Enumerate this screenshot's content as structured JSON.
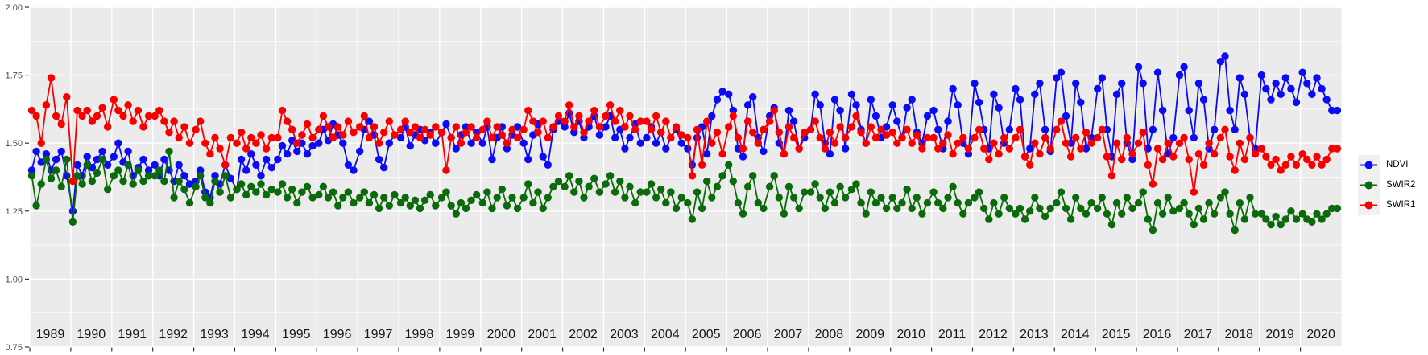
{
  "legend": {
    "items": [
      {
        "label": "NDVI",
        "color": "#0b0bf5"
      },
      {
        "label": "SWIR2",
        "color": "#0b6b0b"
      },
      {
        "label": "SWIR1",
        "color": "#f80000"
      }
    ]
  },
  "chart_data": {
    "type": "line",
    "title": "",
    "xlabel": "",
    "ylabel": "",
    "legend_position": "right",
    "grid": "on",
    "style": {
      "panel_bg": "#ebebeb",
      "grid_color": "#ffffff",
      "axis_text_color": "#4d4d4d",
      "year_text_color": "#151515",
      "tick_color": "#333333"
    },
    "x_axis": {
      "range": [
        1989,
        2021
      ],
      "years": [
        1989,
        1990,
        1991,
        1992,
        1993,
        1994,
        1995,
        1996,
        1997,
        1998,
        1999,
        2000,
        2001,
        2002,
        2003,
        2004,
        2005,
        2006,
        2007,
        2008,
        2009,
        2010,
        2011,
        2012,
        2013,
        2014,
        2015,
        2016,
        2017,
        2018,
        2019,
        2020
      ]
    },
    "y_axis": {
      "range": [
        0.75,
        2.0
      ],
      "tick_values": [
        0.75,
        1.0,
        1.25,
        1.5,
        1.75,
        2.0
      ],
      "ticks": [
        "0.75",
        "1.00",
        "1.25",
        "1.50",
        "1.75",
        "2.00"
      ],
      "minor": [
        0.875,
        1.125,
        1.375,
        1.625,
        1.875
      ]
    },
    "x_offsets": [
      0.05,
      0.16,
      0.28,
      0.4,
      0.52,
      0.64,
      0.77,
      0.9
    ],
    "series": [
      {
        "name": "NDVI",
        "color": "#0b0bf5",
        "values": {
          "1989": [
            1.4,
            1.47,
            1.43,
            1.46,
            1.4,
            1.44,
            1.47,
            1.38
          ],
          "1990": [
            1.25,
            1.42,
            1.38,
            1.45,
            1.41,
            1.44,
            1.47,
            1.42
          ],
          "1991": [
            1.45,
            1.5,
            1.43,
            1.47,
            1.38,
            1.41,
            1.44,
            1.4
          ],
          "1992": [
            1.42,
            1.38,
            1.44,
            1.4,
            1.36,
            1.42,
            1.38,
            1.35
          ],
          "1993": [
            1.36,
            1.4,
            1.32,
            1.3,
            1.38,
            1.35,
            1.42,
            1.37
          ],
          "1994": [
            1.33,
            1.44,
            1.4,
            1.46,
            1.42,
            1.38,
            1.44,
            1.41
          ],
          "1995": [
            1.44,
            1.49,
            1.46,
            1.51,
            1.47,
            1.5,
            1.46,
            1.49
          ],
          "1996": [
            1.5,
            1.55,
            1.51,
            1.57,
            1.53,
            1.5,
            1.42,
            1.4
          ],
          "1997": [
            1.47,
            1.55,
            1.58,
            1.53,
            1.44,
            1.41,
            1.5,
            1.53
          ],
          "1998": [
            1.52,
            1.56,
            1.49,
            1.53,
            1.55,
            1.51,
            1.54,
            1.5
          ],
          "1999": [
            1.54,
            1.57,
            1.52,
            1.48,
            1.53,
            1.56,
            1.5,
            1.54
          ],
          "2000": [
            1.5,
            1.56,
            1.44,
            1.52,
            1.56,
            1.48,
            1.53,
            1.56
          ],
          "2001": [
            1.5,
            1.44,
            1.53,
            1.57,
            1.45,
            1.42,
            1.55,
            1.58
          ],
          "2002": [
            1.56,
            1.61,
            1.54,
            1.58,
            1.52,
            1.56,
            1.6,
            1.53
          ],
          "2003": [
            1.56,
            1.6,
            1.52,
            1.55,
            1.48,
            1.52,
            1.57,
            1.5
          ],
          "2004": [
            1.52,
            1.56,
            1.5,
            1.54,
            1.48,
            1.52,
            1.55,
            1.5
          ],
          "2005": [
            1.48,
            1.42,
            1.52,
            1.56,
            1.46,
            1.6,
            1.66,
            1.69
          ],
          "2006": [
            1.68,
            1.62,
            1.48,
            1.45,
            1.64,
            1.67,
            1.52,
            1.47
          ],
          "2007": [
            1.6,
            1.63,
            1.5,
            1.46,
            1.62,
            1.58,
            1.48,
            1.52
          ],
          "2008": [
            1.55,
            1.68,
            1.64,
            1.5,
            1.46,
            1.66,
            1.62,
            1.48
          ],
          "2009": [
            1.68,
            1.64,
            1.55,
            1.5,
            1.66,
            1.6,
            1.52,
            1.56
          ],
          "2010": [
            1.64,
            1.58,
            1.52,
            1.63,
            1.66,
            1.54,
            1.5,
            1.6
          ],
          "2011": [
            1.62,
            1.55,
            1.48,
            1.58,
            1.7,
            1.64,
            1.5,
            1.46
          ],
          "2012": [
            1.72,
            1.65,
            1.55,
            1.48,
            1.68,
            1.63,
            1.5,
            1.55
          ],
          "2013": [
            1.7,
            1.66,
            1.45,
            1.48,
            1.68,
            1.72,
            1.55,
            1.47
          ],
          "2014": [
            1.74,
            1.76,
            1.6,
            1.5,
            1.72,
            1.65,
            1.48,
            1.52
          ],
          "2015": [
            1.7,
            1.74,
            1.55,
            1.45,
            1.68,
            1.72,
            1.5,
            1.44
          ],
          "2016": [
            1.78,
            1.72,
            1.48,
            1.55,
            1.76,
            1.62,
            1.46,
            1.52
          ],
          "2017": [
            1.75,
            1.78,
            1.62,
            1.52,
            1.72,
            1.66,
            1.48,
            1.55
          ],
          "2018": [
            1.8,
            1.82,
            1.62,
            1.55,
            1.74,
            1.68,
            1.52,
            1.48
          ],
          "2019": [
            1.75,
            1.7,
            1.66,
            1.72,
            1.68,
            1.74,
            1.7,
            1.65
          ],
          "2020": [
            1.76,
            1.72,
            1.68,
            1.74,
            1.7,
            1.66,
            1.62,
            1.62
          ]
        }
      },
      {
        "name": "SWIR2",
        "color": "#0b6b0b",
        "values": {
          "1989": [
            1.38,
            1.27,
            1.35,
            1.44,
            1.37,
            1.4,
            1.34,
            1.44
          ],
          "1990": [
            1.21,
            1.38,
            1.35,
            1.42,
            1.36,
            1.39,
            1.44,
            1.33
          ],
          "1991": [
            1.38,
            1.4,
            1.36,
            1.42,
            1.35,
            1.4,
            1.36,
            1.38
          ],
          "1992": [
            1.38,
            1.4,
            1.36,
            1.47,
            1.3,
            1.36,
            1.33,
            1.28
          ],
          "1993": [
            1.34,
            1.38,
            1.3,
            1.28,
            1.36,
            1.32,
            1.38,
            1.3
          ],
          "1994": [
            1.33,
            1.35,
            1.31,
            1.34,
            1.32,
            1.35,
            1.31,
            1.33
          ],
          "1995": [
            1.32,
            1.35,
            1.3,
            1.33,
            1.28,
            1.32,
            1.34,
            1.3
          ],
          "1996": [
            1.31,
            1.34,
            1.3,
            1.32,
            1.27,
            1.3,
            1.32,
            1.28
          ],
          "1997": [
            1.3,
            1.32,
            1.28,
            1.31,
            1.26,
            1.3,
            1.27,
            1.31
          ],
          "1998": [
            1.28,
            1.3,
            1.27,
            1.29,
            1.26,
            1.29,
            1.31,
            1.27
          ],
          "1999": [
            1.3,
            1.32,
            1.27,
            1.24,
            1.28,
            1.26,
            1.29,
            1.31
          ],
          "2000": [
            1.28,
            1.32,
            1.26,
            1.3,
            1.33,
            1.27,
            1.3,
            1.26
          ],
          "2001": [
            1.3,
            1.35,
            1.28,
            1.32,
            1.26,
            1.3,
            1.34,
            1.36
          ],
          "2002": [
            1.34,
            1.38,
            1.32,
            1.36,
            1.3,
            1.34,
            1.37,
            1.32
          ],
          "2003": [
            1.35,
            1.38,
            1.32,
            1.36,
            1.3,
            1.34,
            1.28,
            1.32
          ],
          "2004": [
            1.32,
            1.35,
            1.3,
            1.33,
            1.28,
            1.32,
            1.26,
            1.3
          ],
          "2005": [
            1.28,
            1.22,
            1.32,
            1.26,
            1.36,
            1.3,
            1.34,
            1.38
          ],
          "2006": [
            1.42,
            1.36,
            1.28,
            1.24,
            1.34,
            1.38,
            1.28,
            1.26
          ],
          "2007": [
            1.34,
            1.38,
            1.3,
            1.24,
            1.34,
            1.3,
            1.26,
            1.32
          ],
          "2008": [
            1.32,
            1.35,
            1.3,
            1.26,
            1.32,
            1.28,
            1.34,
            1.3
          ],
          "2009": [
            1.33,
            1.35,
            1.28,
            1.24,
            1.32,
            1.28,
            1.3,
            1.26
          ],
          "2010": [
            1.3,
            1.26,
            1.28,
            1.33,
            1.26,
            1.3,
            1.24,
            1.28
          ],
          "2011": [
            1.32,
            1.28,
            1.26,
            1.3,
            1.34,
            1.28,
            1.24,
            1.28
          ],
          "2012": [
            1.3,
            1.32,
            1.26,
            1.22,
            1.28,
            1.24,
            1.3,
            1.26
          ],
          "2013": [
            1.24,
            1.26,
            1.22,
            1.25,
            1.3,
            1.26,
            1.23,
            1.26
          ],
          "2014": [
            1.28,
            1.32,
            1.26,
            1.22,
            1.3,
            1.26,
            1.24,
            1.28
          ],
          "2015": [
            1.26,
            1.3,
            1.24,
            1.2,
            1.28,
            1.24,
            1.3,
            1.26
          ],
          "2016": [
            1.28,
            1.32,
            1.22,
            1.18,
            1.28,
            1.24,
            1.3,
            1.25
          ],
          "2017": [
            1.26,
            1.28,
            1.24,
            1.2,
            1.26,
            1.22,
            1.28,
            1.24
          ],
          "2018": [
            1.3,
            1.32,
            1.24,
            1.18,
            1.28,
            1.22,
            1.3,
            1.24
          ],
          "2019": [
            1.24,
            1.22,
            1.2,
            1.23,
            1.2,
            1.22,
            1.25,
            1.22
          ],
          "2020": [
            1.24,
            1.22,
            1.21,
            1.24,
            1.22,
            1.24,
            1.26,
            1.26
          ]
        }
      },
      {
        "name": "SWIR1",
        "color": "#f80000",
        "values": {
          "1989": [
            1.62,
            1.6,
            1.5,
            1.64,
            1.74,
            1.6,
            1.57,
            1.67
          ],
          "1990": [
            1.36,
            1.62,
            1.6,
            1.62,
            1.58,
            1.6,
            1.63,
            1.56
          ],
          "1991": [
            1.66,
            1.62,
            1.6,
            1.64,
            1.58,
            1.62,
            1.56,
            1.6
          ],
          "1992": [
            1.6,
            1.62,
            1.58,
            1.54,
            1.58,
            1.52,
            1.56,
            1.5
          ],
          "1993": [
            1.55,
            1.58,
            1.5,
            1.46,
            1.52,
            1.48,
            1.42,
            1.52
          ],
          "1994": [
            1.5,
            1.54,
            1.48,
            1.52,
            1.5,
            1.53,
            1.48,
            1.52
          ],
          "1995": [
            1.52,
            1.62,
            1.58,
            1.55,
            1.5,
            1.53,
            1.57,
            1.52
          ],
          "1996": [
            1.55,
            1.6,
            1.56,
            1.52,
            1.56,
            1.53,
            1.58,
            1.54
          ],
          "1997": [
            1.56,
            1.6,
            1.52,
            1.56,
            1.5,
            1.54,
            1.58,
            1.53
          ],
          "1998": [
            1.55,
            1.58,
            1.54,
            1.56,
            1.52,
            1.55,
            1.53,
            1.56
          ],
          "1999": [
            1.54,
            1.4,
            1.52,
            1.56,
            1.5,
            1.54,
            1.56,
            1.52
          ],
          "2000": [
            1.55,
            1.58,
            1.52,
            1.56,
            1.53,
            1.5,
            1.55,
            1.52
          ],
          "2001": [
            1.55,
            1.62,
            1.58,
            1.54,
            1.58,
            1.52,
            1.56,
            1.6
          ],
          "2002": [
            1.58,
            1.64,
            1.56,
            1.6,
            1.54,
            1.58,
            1.62,
            1.56
          ],
          "2003": [
            1.6,
            1.64,
            1.58,
            1.62,
            1.56,
            1.6,
            1.55,
            1.58
          ],
          "2004": [
            1.58,
            1.55,
            1.6,
            1.54,
            1.58,
            1.52,
            1.56,
            1.53
          ],
          "2005": [
            1.52,
            1.38,
            1.55,
            1.42,
            1.58,
            1.5,
            1.54,
            1.46
          ],
          "2006": [
            1.56,
            1.6,
            1.52,
            1.48,
            1.58,
            1.54,
            1.5,
            1.55
          ],
          "2007": [
            1.58,
            1.62,
            1.54,
            1.46,
            1.56,
            1.52,
            1.48,
            1.54
          ],
          "2008": [
            1.55,
            1.58,
            1.52,
            1.48,
            1.54,
            1.5,
            1.56,
            1.52
          ],
          "2009": [
            1.56,
            1.6,
            1.54,
            1.5,
            1.56,
            1.52,
            1.55,
            1.53
          ],
          "2010": [
            1.54,
            1.5,
            1.52,
            1.55,
            1.5,
            1.53,
            1.48,
            1.52
          ],
          "2011": [
            1.52,
            1.48,
            1.5,
            1.53,
            1.46,
            1.5,
            1.52,
            1.48
          ],
          "2012": [
            1.52,
            1.55,
            1.48,
            1.44,
            1.5,
            1.46,
            1.52,
            1.48
          ],
          "2013": [
            1.52,
            1.55,
            1.45,
            1.42,
            1.5,
            1.46,
            1.52,
            1.48
          ],
          "2014": [
            1.55,
            1.58,
            1.5,
            1.45,
            1.52,
            1.48,
            1.54,
            1.5
          ],
          "2015": [
            1.52,
            1.55,
            1.45,
            1.38,
            1.5,
            1.44,
            1.52,
            1.46
          ],
          "2016": [
            1.5,
            1.54,
            1.42,
            1.35,
            1.48,
            1.44,
            1.5,
            1.45
          ],
          "2017": [
            1.5,
            1.52,
            1.44,
            1.32,
            1.46,
            1.42,
            1.5,
            1.46
          ],
          "2018": [
            1.52,
            1.55,
            1.45,
            1.4,
            1.5,
            1.44,
            1.52,
            1.46
          ],
          "2019": [
            1.48,
            1.45,
            1.42,
            1.44,
            1.4,
            1.42,
            1.45,
            1.42
          ],
          "2020": [
            1.46,
            1.44,
            1.42,
            1.45,
            1.42,
            1.44,
            1.48,
            1.48
          ]
        }
      }
    ]
  }
}
